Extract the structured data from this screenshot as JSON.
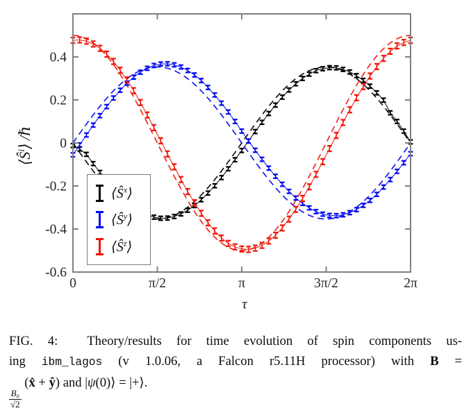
{
  "figure": {
    "ylabel": {
      "pre": "⟨Ŝ",
      "sup": "i",
      "post": "⟩ /ℏ"
    },
    "xlabel": "τ"
  },
  "legend": {
    "position": "lower-left",
    "items": [
      {
        "pre": "⟨Ŝ",
        "sup": "x",
        "post": "⟩",
        "color": "#000000"
      },
      {
        "pre": "⟨Ŝ",
        "sup": "y",
        "post": "⟩",
        "color": "#0008f0"
      },
      {
        "pre": "⟨Ŝ",
        "sup": "z",
        "post": "⟩",
        "color": "#f01507"
      }
    ]
  },
  "caption": {
    "line1": "FIG. 4:  Theory/results for time evolution of spin components us-",
    "l2_a": "ing ",
    "l2_code": "ibm_lagos",
    "l2_b": " (v 1.0.06, a Falcon r5.11H processor) with ",
    "l2_bold": "B",
    "l2_c": " =",
    "frac_num": "B₀",
    "frac_den": "√2",
    "l3_a": " (",
    "l3_x": "x̂",
    "l3_plus": " + ",
    "l3_y": "ŷ",
    "l3_b": ") and |",
    "l3_psi": "ψ",
    "l3_c": "(0)⟩ = |+⟩."
  },
  "chart_data": {
    "type": "line",
    "title": "",
    "xlabel": "τ",
    "ylabel": "⟨Ŝⁱ⟩/ℏ",
    "xlim": [
      0,
      6.2832
    ],
    "ylim": [
      -0.6,
      0.6
    ],
    "grid": false,
    "legend_position": "lower-left",
    "x_ticks": {
      "values": [
        0,
        1.5708,
        3.1416,
        4.7124,
        6.2832
      ],
      "labels": [
        "0",
        "π/2",
        "π",
        "3π/2",
        "2π"
      ]
    },
    "y_ticks": {
      "values": [
        0.4,
        0.2,
        0,
        -0.2,
        -0.4,
        -0.6
      ],
      "labels": [
        "0.4",
        "0.2",
        "0",
        "-0.2",
        "-0.4",
        "-0.6"
      ]
    },
    "x_sampling": "tau_k = k*2pi/50, k = 0..50",
    "series": [
      {
        "name": "⟨Ŝˣ⟩ data",
        "color": "#000000",
        "err_half": 0.009,
        "values": [
          -0.012,
          -0.028,
          -0.053,
          -0.096,
          -0.137,
          -0.176,
          -0.213,
          -0.246,
          -0.275,
          -0.3,
          -0.32,
          -0.336,
          -0.345,
          -0.35,
          -0.349,
          -0.342,
          -0.33,
          -0.313,
          -0.291,
          -0.264,
          -0.233,
          -0.199,
          -0.161,
          -0.12,
          -0.078,
          -0.035,
          0.009,
          0.053,
          0.096,
          0.137,
          0.176,
          0.213,
          0.246,
          0.275,
          0.3,
          0.32,
          0.336,
          0.345,
          0.35,
          0.349,
          0.342,
          0.33,
          0.313,
          0.291,
          0.264,
          0.233,
          0.199,
          0.14,
          0.1,
          0.055,
          0.005
        ]
      },
      {
        "name": "⟨Ŝʸ⟩ data",
        "color": "#0008f0",
        "err_half": 0.009,
        "values": [
          -0.055,
          -0.009,
          0.037,
          0.083,
          0.127,
          0.169,
          0.209,
          0.245,
          0.278,
          0.306,
          0.329,
          0.347,
          0.36,
          0.367,
          0.368,
          0.363,
          0.353,
          0.337,
          0.316,
          0.29,
          0.258,
          0.223,
          0.185,
          0.144,
          0.1,
          0.055,
          0.009,
          -0.034,
          -0.076,
          -0.117,
          -0.155,
          -0.192,
          -0.225,
          -0.256,
          -0.281,
          -0.302,
          -0.319,
          -0.331,
          -0.337,
          -0.338,
          -0.334,
          -0.324,
          -0.31,
          -0.29,
          -0.267,
          -0.239,
          -0.205,
          -0.17,
          -0.132,
          -0.092,
          -0.05
        ]
      },
      {
        "name": "⟨Ŝᶻ⟩ data",
        "color": "#f01507",
        "err_half": 0.013,
        "values": [
          0.477,
          0.479,
          0.473,
          0.46,
          0.44,
          0.413,
          0.379,
          0.338,
          0.293,
          0.243,
          0.188,
          0.13,
          0.071,
          0.01,
          -0.051,
          -0.111,
          -0.17,
          -0.226,
          -0.278,
          -0.327,
          -0.371,
          -0.409,
          -0.442,
          -0.467,
          -0.483,
          -0.493,
          -0.495,
          -0.489,
          -0.476,
          -0.456,
          -0.429,
          -0.395,
          -0.354,
          -0.309,
          -0.258,
          -0.204,
          -0.146,
          -0.087,
          -0.026,
          0.035,
          0.095,
          0.154,
          0.21,
          0.262,
          0.311,
          0.355,
          0.393,
          0.426,
          0.451,
          0.467,
          0.477
        ]
      }
    ],
    "theory": [
      {
        "name": "⟨Ŝˣ⟩ theory",
        "color": "#000000",
        "fn": "sin",
        "amplitude": -0.3536
      },
      {
        "name": "⟨Ŝʸ⟩ theory",
        "color": "#0008f0",
        "fn": "sin",
        "amplitude": 0.3536
      },
      {
        "name": "⟨Ŝᶻ⟩ theory",
        "color": "#f01507",
        "fn": "cos",
        "amplitude": 0.5
      }
    ]
  }
}
